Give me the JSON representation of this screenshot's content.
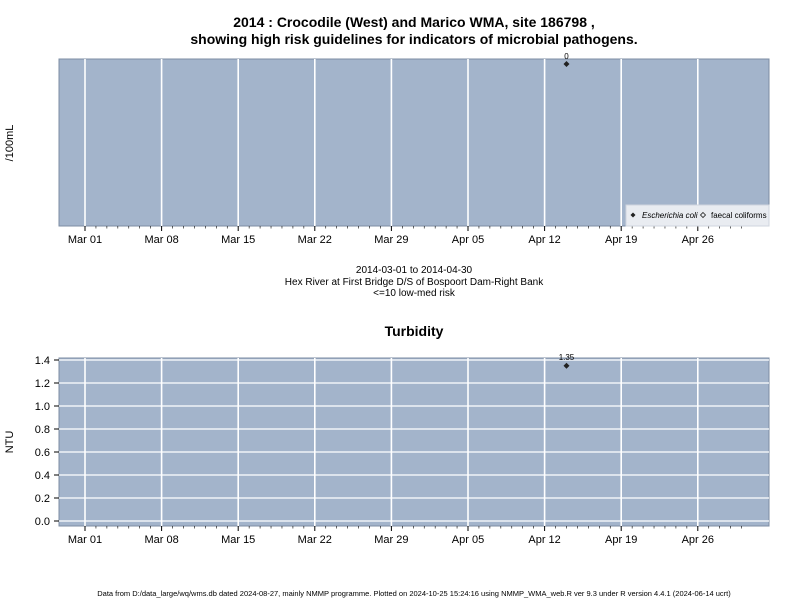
{
  "header": {
    "title_line1": "2014 : Crocodile (West) and Marico WMA, site 186798 ,",
    "title_line2": "showing high risk guidelines for indicators of microbial pathogens."
  },
  "chart_data": [
    {
      "type": "scatter",
      "ylabel": "/100mL",
      "x_ticks": [
        "Mar 01",
        "Mar 08",
        "Mar 15",
        "Mar 22",
        "Mar 29",
        "Apr 05",
        "Apr 12",
        "Apr 19",
        "Apr 26"
      ],
      "series": [
        {
          "name": "Escherichia coli",
          "x": [
            "2014-04-14"
          ],
          "y": [
            0
          ],
          "labels": [
            "0"
          ],
          "marker": "filled-diamond"
        },
        {
          "name": "faecal coliforms",
          "x": [],
          "y": [],
          "labels": [],
          "marker": "open-diamond"
        }
      ],
      "legend_position": "bottom-right",
      "grid": true,
      "background": "#a3b4cb",
      "subtitle_lines": [
        "2014-03-01 to 2014-04-30",
        "Hex River at First Bridge D/S of Bospoort Dam-Right Bank",
        "<=10 low-med risk"
      ]
    },
    {
      "type": "scatter",
      "title": "Turbidity",
      "ylabel": "NTU",
      "ylim": [
        -0.05,
        1.4
      ],
      "y_ticks": [
        "0.0",
        "0.2",
        "0.4",
        "0.6",
        "0.8",
        "1.0",
        "1.2",
        "1.4"
      ],
      "x_ticks": [
        "Mar 01",
        "Mar 08",
        "Mar 15",
        "Mar 22",
        "Mar 29",
        "Apr 05",
        "Apr 12",
        "Apr 19",
        "Apr 26"
      ],
      "series": [
        {
          "x": [
            "2014-04-14"
          ],
          "y": [
            1.35
          ],
          "labels": [
            "1.35"
          ],
          "marker": "filled-diamond"
        }
      ],
      "grid": true,
      "background": "#a3b4cb"
    }
  ],
  "footer": {
    "text": "Data from D:/data_large/wq/wms.db dated 2024-08-27, mainly NMMP programme. Plotted on 2024-10-25 15:24:16 using NMMP_WMA_web.R ver 9.3 under R version 4.4.1 (2024-06-14 ucrt)"
  }
}
